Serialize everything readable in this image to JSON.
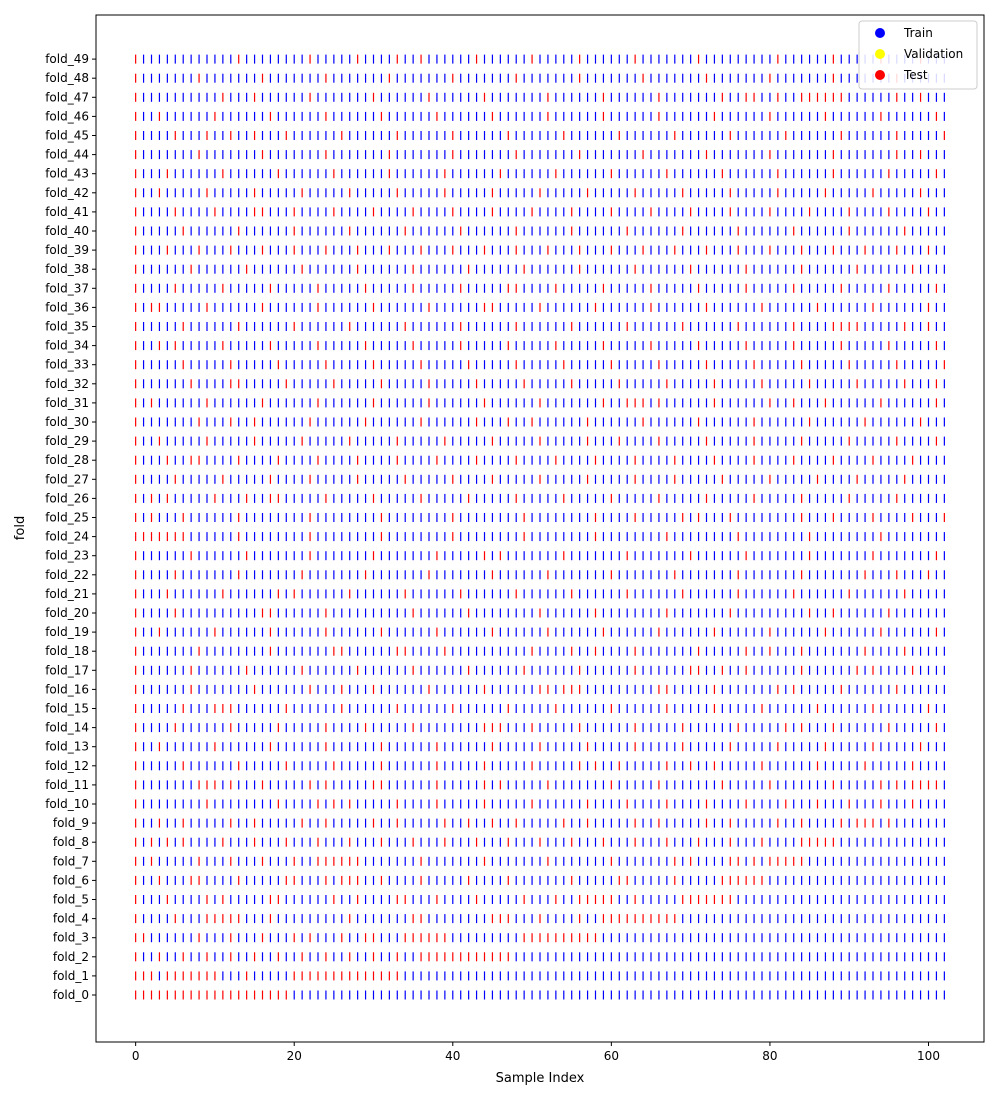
{
  "chart_data": {
    "type": "scatter",
    "xlabel": "Sample Index",
    "ylabel": "fold",
    "xlim": [
      -5,
      107
    ],
    "x_ticks": [
      0,
      20,
      40,
      60,
      80,
      100
    ],
    "n_samples": 103,
    "marker": "|",
    "grid": false,
    "legend": {
      "placement": "top-right",
      "entries": [
        {
          "label": "Train",
          "color": "#0000ff"
        },
        {
          "label": "Validation",
          "color": "#ffff00"
        },
        {
          "label": "Test",
          "color": "#ff0000"
        }
      ]
    },
    "folds": [
      {
        "name": "fold_0",
        "test": [
          0,
          1,
          2,
          3,
          4,
          5,
          6,
          7,
          8,
          9,
          10,
          11,
          12,
          13,
          14,
          15,
          16,
          17,
          18,
          19
        ]
      },
      {
        "name": "fold_1",
        "test": [
          0,
          1,
          2,
          4,
          5,
          6,
          7,
          8,
          9,
          10,
          14,
          20,
          21,
          22,
          23,
          24,
          25,
          26,
          27,
          28,
          29,
          30,
          31,
          32,
          33
        ]
      },
      {
        "name": "fold_2",
        "test": [
          0,
          3,
          6,
          9,
          12,
          15,
          18,
          21,
          24,
          27,
          30,
          33,
          36,
          37,
          38,
          39,
          40,
          41,
          42,
          43,
          44,
          45,
          46,
          47
        ]
      },
      {
        "name": "fold_3",
        "test": [
          0,
          1,
          8,
          12,
          16,
          20,
          22,
          26,
          29,
          30,
          34,
          35,
          36,
          37,
          38,
          39,
          49,
          50,
          51,
          52,
          53,
          54,
          55,
          56,
          57,
          58
        ]
      },
      {
        "name": "fold_4",
        "test": [
          0,
          5,
          9,
          10,
          11,
          12,
          13,
          17,
          27,
          35,
          36,
          45,
          46,
          47,
          51,
          56,
          59,
          60,
          61,
          62,
          63,
          64,
          65,
          66,
          67,
          68
        ]
      },
      {
        "name": "fold_5",
        "test": [
          0,
          4,
          9,
          11,
          17,
          18,
          25,
          28,
          33,
          34,
          38,
          43,
          49,
          53,
          56,
          57,
          58,
          59,
          60,
          63,
          69,
          70,
          71,
          72,
          73,
          74,
          75
        ]
      },
      {
        "name": "fold_6",
        "test": [
          0,
          3,
          7,
          8,
          13,
          19,
          20,
          24,
          26,
          27,
          28,
          31,
          36,
          42,
          47,
          55,
          61,
          62,
          68,
          74,
          75,
          76,
          77,
          78,
          79
        ]
      },
      {
        "name": "fold_7",
        "test": [
          0,
          2,
          8,
          12,
          16,
          20,
          23,
          24,
          25,
          26,
          27,
          28,
          36,
          44,
          52,
          60,
          68,
          70,
          75,
          76,
          78,
          80,
          81,
          82,
          83,
          84
        ]
      },
      {
        "name": "fold_8",
        "test": [
          0,
          2,
          4,
          6,
          11,
          15,
          19,
          23,
          27,
          31,
          35,
          39,
          43,
          47,
          51,
          55,
          59,
          63,
          67,
          71,
          75,
          79,
          84,
          85,
          86,
          87,
          88
        ]
      },
      {
        "name": "fold_9",
        "test": [
          0,
          3,
          6,
          12,
          15,
          21,
          24,
          30,
          33,
          39,
          42,
          45,
          48,
          54,
          57,
          63,
          66,
          72,
          75,
          81,
          84,
          89,
          91,
          92,
          93,
          95
        ]
      },
      {
        "name": "fold_10",
        "test": [
          0,
          9,
          18,
          23,
          25,
          27,
          33,
          38,
          44,
          50,
          57,
          62,
          67,
          72,
          77,
          82,
          86,
          90,
          94,
          98
        ]
      },
      {
        "name": "fold_11",
        "test": [
          0,
          8,
          9,
          10,
          12,
          16,
          22,
          24,
          30,
          31,
          38,
          44,
          46,
          52,
          60,
          66,
          74,
          80,
          88,
          94,
          96,
          98,
          99,
          100,
          101
        ]
      },
      {
        "name": "fold_12",
        "test": [
          0,
          6,
          13,
          19,
          25,
          31,
          38,
          44,
          50,
          56,
          58,
          61,
          67,
          70,
          73,
          79,
          86,
          92,
          98
        ]
      },
      {
        "name": "fold_13",
        "test": [
          0,
          3,
          10,
          17,
          24,
          31,
          38,
          45,
          51,
          57,
          63,
          69,
          75,
          81,
          87,
          93,
          99
        ]
      },
      {
        "name": "fold_14",
        "test": [
          0,
          5,
          12,
          18,
          24,
          29,
          35,
          44,
          45,
          46,
          50,
          56,
          63,
          69,
          76,
          82,
          84,
          88,
          95,
          101
        ]
      },
      {
        "name": "fold_15",
        "test": [
          0,
          6,
          10,
          11,
          12,
          19,
          26,
          33,
          40,
          47,
          53,
          60,
          67,
          73,
          79,
          86,
          93,
          100
        ]
      },
      {
        "name": "fold_16",
        "test": [
          0,
          7,
          15,
          22,
          26,
          30,
          37,
          44,
          51,
          52,
          54,
          55,
          56,
          66,
          67,
          73,
          81,
          83,
          89,
          96
        ]
      },
      {
        "name": "fold_17",
        "test": [
          0,
          7,
          14,
          21,
          28,
          35,
          42,
          49,
          56,
          63,
          70,
          71,
          74,
          77,
          84,
          91,
          93,
          98
        ]
      },
      {
        "name": "fold_18",
        "test": [
          0,
          8,
          17,
          25,
          26,
          33,
          34,
          39,
          50,
          55,
          58,
          63,
          71,
          77,
          80,
          84,
          92,
          97
        ]
      },
      {
        "name": "fold_19",
        "test": [
          0,
          3,
          10,
          17,
          24,
          31,
          38,
          45,
          52,
          59,
          66,
          73,
          80,
          87,
          94,
          101
        ]
      },
      {
        "name": "fold_20",
        "test": [
          0,
          5,
          16,
          17,
          24,
          35,
          42,
          51,
          58,
          67,
          75,
          85,
          88,
          95
        ]
      },
      {
        "name": "fold_21",
        "test": [
          0,
          4,
          11,
          18,
          20,
          27,
          34,
          41,
          48,
          55,
          62,
          69,
          76,
          83,
          90,
          97
        ]
      },
      {
        "name": "fold_22",
        "test": [
          0,
          5,
          13,
          21,
          29,
          37,
          45,
          52,
          60,
          68,
          76,
          84,
          92,
          96,
          100
        ]
      },
      {
        "name": "fold_23",
        "test": [
          0,
          7,
          14,
          22,
          30,
          38,
          44,
          46,
          54,
          62,
          70,
          77,
          85,
          93,
          101
        ]
      },
      {
        "name": "fold_24",
        "test": [
          0,
          1,
          2,
          3,
          4,
          5,
          6,
          13,
          22,
          31,
          40,
          49,
          58,
          67,
          76,
          85,
          94
        ]
      },
      {
        "name": "fold_25",
        "test": [
          0,
          2,
          6,
          13,
          22,
          31,
          40,
          49,
          58,
          63,
          69,
          71,
          75,
          84,
          88,
          93,
          98,
          102
        ]
      },
      {
        "name": "fold_26",
        "test": [
          0,
          2,
          4,
          10,
          14,
          17,
          18,
          24,
          30,
          36,
          42,
          48,
          54,
          60,
          66,
          72,
          78,
          84,
          90,
          96
        ]
      },
      {
        "name": "fold_27",
        "test": [
          0,
          5,
          11,
          17,
          22,
          28,
          34,
          40,
          45,
          51,
          57,
          63,
          68,
          74,
          80,
          86,
          91,
          97
        ]
      },
      {
        "name": "fold_28",
        "test": [
          0,
          4,
          7,
          8,
          13,
          18,
          23,
          28,
          33,
          38,
          43,
          48,
          53,
          58,
          63,
          68,
          73,
          78,
          83,
          88,
          93,
          98
        ]
      },
      {
        "name": "fold_29",
        "test": [
          0,
          3,
          9,
          15,
          21,
          27,
          33,
          39,
          45,
          51,
          57,
          61,
          66,
          72,
          78,
          84,
          90,
          96,
          101
        ]
      },
      {
        "name": "fold_30",
        "test": [
          0,
          8,
          12,
          15,
          22,
          29,
          36,
          43,
          47,
          50,
          57,
          64,
          71,
          78,
          85,
          92,
          99
        ]
      },
      {
        "name": "fold_31",
        "test": [
          0,
          2,
          9,
          16,
          23,
          30,
          37,
          44,
          51,
          59,
          62,
          63,
          64,
          66,
          73,
          80,
          83,
          87,
          94,
          101
        ]
      },
      {
        "name": "fold_32",
        "test": [
          0,
          7,
          12,
          13,
          19,
          25,
          31,
          37,
          43,
          49,
          55,
          61,
          67,
          73,
          79,
          85,
          91,
          97,
          101
        ]
      },
      {
        "name": "fold_33",
        "test": [
          0,
          6,
          12,
          18,
          24,
          30,
          36,
          42,
          48,
          54,
          60,
          66,
          72,
          78,
          84,
          90,
          96,
          102
        ]
      },
      {
        "name": "fold_34",
        "test": [
          0,
          3,
          5,
          11,
          17,
          23,
          29,
          35,
          41,
          47,
          53,
          59,
          65,
          71,
          77,
          83,
          89,
          95,
          101
        ]
      },
      {
        "name": "fold_35",
        "test": [
          0,
          6,
          13,
          20,
          27,
          34,
          41,
          48,
          55,
          62,
          69,
          76,
          83,
          88,
          89,
          90,
          91,
          97,
          100
        ]
      },
      {
        "name": "fold_36",
        "test": [
          0,
          2,
          3,
          9,
          16,
          23,
          30,
          37,
          44,
          45,
          51,
          58,
          65,
          72,
          79,
          86,
          93,
          100
        ]
      },
      {
        "name": "fold_37",
        "test": [
          0,
          5,
          11,
          17,
          23,
          29,
          35,
          41,
          47,
          48,
          53,
          59,
          65,
          71,
          77,
          83,
          89,
          95,
          101
        ]
      },
      {
        "name": "fold_38",
        "test": [
          0,
          7,
          14,
          21,
          28,
          35,
          42,
          49,
          56,
          63,
          70,
          77,
          84,
          91,
          98
        ]
      },
      {
        "name": "fold_39",
        "test": [
          0,
          4,
          8,
          12,
          16,
          20,
          24,
          28,
          32,
          36,
          40,
          44,
          48,
          52,
          56,
          60,
          64,
          68,
          72,
          76,
          80,
          84,
          88,
          92,
          96,
          100
        ]
      },
      {
        "name": "fold_40",
        "test": [
          0,
          6,
          13,
          20,
          27,
          34,
          41,
          48,
          55,
          62,
          69,
          76,
          83,
          90,
          97
        ]
      },
      {
        "name": "fold_41",
        "test": [
          0,
          5,
          10,
          15,
          16,
          20,
          25,
          30,
          35,
          40,
          45,
          50,
          55,
          60,
          65,
          70,
          75,
          80,
          85,
          90,
          95,
          100
        ]
      },
      {
        "name": "fold_42",
        "test": [
          0,
          3,
          9,
          15,
          21,
          27,
          33,
          39,
          45,
          51,
          57,
          63,
          69,
          75,
          81,
          87,
          93,
          99
        ]
      },
      {
        "name": "fold_43",
        "test": [
          0,
          4,
          11,
          18,
          25,
          32,
          39,
          46,
          53,
          60,
          67,
          74,
          81,
          88,
          95,
          101
        ]
      },
      {
        "name": "fold_44",
        "test": [
          0,
          8,
          16,
          24,
          32,
          40,
          48,
          56,
          64,
          72,
          80,
          88,
          96,
          99
        ]
      },
      {
        "name": "fold_45",
        "test": [
          0,
          5,
          9,
          12,
          15,
          19,
          26,
          33,
          40,
          47,
          54,
          61,
          68,
          75,
          82,
          89,
          96,
          102
        ]
      },
      {
        "name": "fold_46",
        "test": [
          0,
          3,
          10,
          17,
          24,
          31,
          38,
          45,
          52,
          59,
          66,
          73,
          80,
          87,
          94,
          101
        ]
      },
      {
        "name": "fold_47",
        "test": [
          0,
          11,
          15,
          22,
          30,
          37,
          44,
          52,
          59,
          66,
          74,
          77,
          78,
          81,
          84,
          85,
          86,
          87,
          88,
          89,
          96,
          99
        ]
      },
      {
        "name": "fold_48",
        "test": [
          0,
          8,
          16,
          24,
          32,
          40,
          48,
          56,
          64,
          72,
          80,
          88,
          96
        ]
      },
      {
        "name": "fold_49",
        "test": [
          0,
          13,
          22,
          28,
          33,
          36,
          43,
          50,
          56,
          63,
          71,
          81,
          88,
          94,
          99
        ]
      }
    ]
  }
}
